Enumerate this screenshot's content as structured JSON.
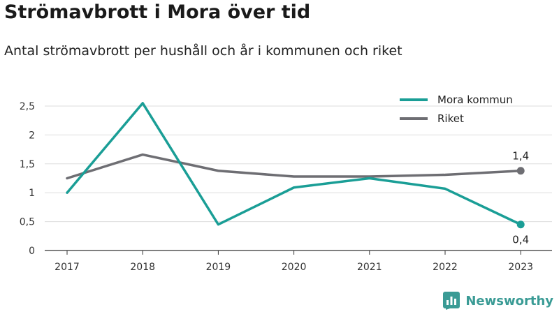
{
  "header": {
    "title": "Strömavbrott i Mora över tid",
    "subtitle": "Antal strömavbrott per hushåll och år i kommunen och riket"
  },
  "brand": {
    "name": "Newsworthy",
    "icon": "newsworthy-logo-icon"
  },
  "colors": {
    "mora": "#1a9e96",
    "riket": "#6e6e73",
    "grid": "#dddddd",
    "axis": "#333333"
  },
  "chart_data": {
    "type": "line",
    "x": [
      "2017",
      "2018",
      "2019",
      "2020",
      "2021",
      "2022",
      "2023"
    ],
    "series": [
      {
        "name": "Mora kommun",
        "values": [
          1.0,
          2.55,
          0.45,
          1.09,
          1.25,
          1.07,
          0.45
        ],
        "end_label": "0,4"
      },
      {
        "name": "Riket",
        "values": [
          1.25,
          1.66,
          1.38,
          1.28,
          1.28,
          1.31,
          1.38
        ],
        "end_label": "1,4"
      }
    ],
    "ylim": [
      0,
      2.5
    ],
    "yticks": [
      0,
      0.5,
      1,
      1.5,
      2,
      2.5
    ],
    "ytick_labels": [
      "0",
      "0,5",
      "1",
      "1,5",
      "2",
      "2,5"
    ],
    "grid": true,
    "legend_position": "top-right"
  }
}
